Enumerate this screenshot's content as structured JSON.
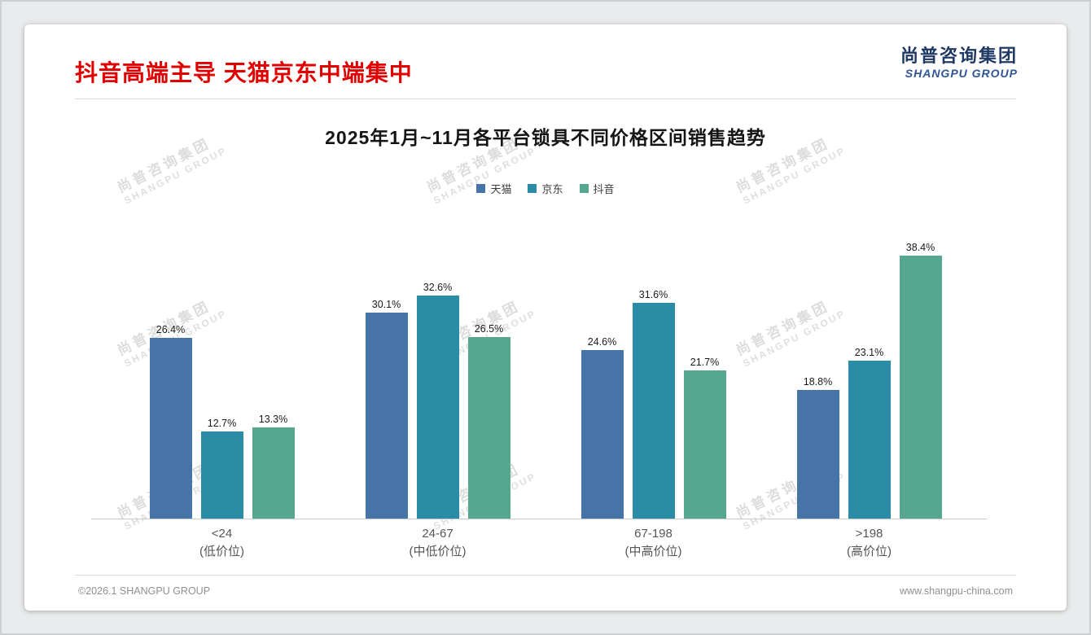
{
  "header": {
    "title": "抖音高端主导 天猫京东中端集中",
    "logo": {
      "cn": "尚普咨询集团",
      "en": "SHANGPU GROUP"
    }
  },
  "watermark": {
    "line1": "尚普咨询集团",
    "line2": "SHANGPU GROUP"
  },
  "theme": {
    "title_red": "#e00000",
    "logo_navy": "#1f3864",
    "logo_blue": "#2f5597"
  },
  "chart_data": {
    "type": "bar",
    "title": "2025年1月~11月各平台锁具不同价格区间销售趋势",
    "categories": [
      "<24",
      "24-67",
      "67-198",
      ">198"
    ],
    "category_sublabels": [
      "(低价位)",
      "(中低价位)",
      "(中高价位)",
      "(高价位)"
    ],
    "series": [
      {
        "name": "天猫",
        "color": "#4674a8",
        "values": [
          26.4,
          30.1,
          24.6,
          18.8
        ]
      },
      {
        "name": "京东",
        "color": "#2b8ca6",
        "values": [
          12.7,
          32.6,
          31.6,
          23.1
        ]
      },
      {
        "name": "抖音",
        "color": "#55a78f",
        "values": [
          13.3,
          26.5,
          21.7,
          38.4
        ]
      }
    ],
    "value_suffix": "%",
    "ylim": [
      0,
      40
    ],
    "legend_position": "top",
    "grid": false
  },
  "footer": {
    "copyright": "©2026.1 SHANGPU GROUP",
    "website": "www.shangpu-china.com"
  }
}
